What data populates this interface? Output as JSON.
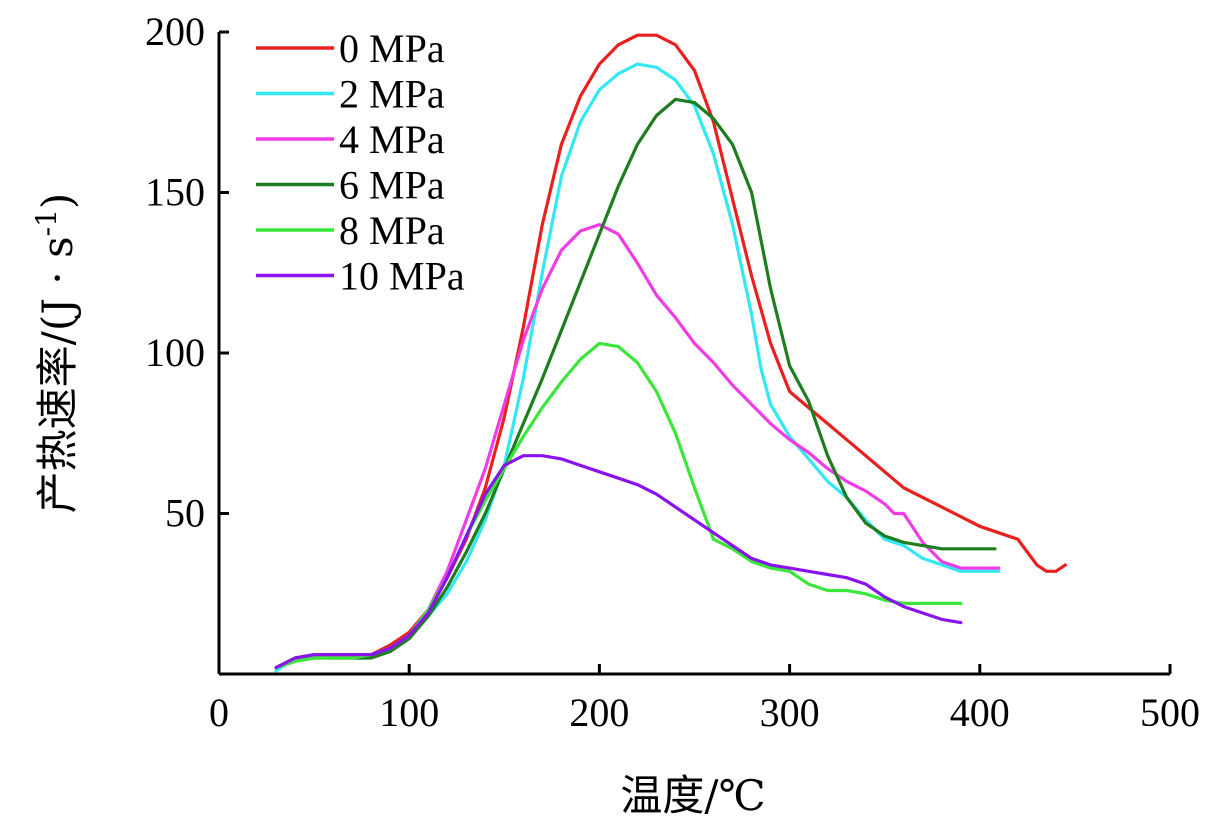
{
  "chart_data": {
    "type": "line",
    "title": "",
    "xlabel": "温度/℃",
    "ylabel_main": "产热速率/(J · s",
    "ylabel_sup": "-1",
    "ylabel_close": ")",
    "xlim": [
      0,
      500
    ],
    "ylim": [
      0,
      200
    ],
    "x_ticks": [
      0,
      100,
      200,
      300,
      400,
      500
    ],
    "x_tick_labels": [
      "0",
      "100",
      "200",
      "300",
      "400",
      "500"
    ],
    "y_ticks": [
      50,
      100,
      150,
      200
    ],
    "y_tick_labels": [
      "50",
      "100",
      "150",
      "200"
    ],
    "grid": false,
    "legend_position": "top-left",
    "series": [
      {
        "name": "0 MPa",
        "color": "#e8201e",
        "x": [
          30,
          40,
          50,
          60,
          70,
          80,
          90,
          100,
          110,
          120,
          130,
          140,
          150,
          160,
          170,
          180,
          190,
          200,
          210,
          220,
          230,
          240,
          250,
          260,
          270,
          280,
          290,
          300,
          310,
          320,
          330,
          340,
          350,
          360,
          370,
          380,
          390,
          400,
          410,
          420,
          425,
          430,
          435,
          440,
          445
        ],
        "y": [
          2,
          5,
          6,
          6,
          6,
          6,
          9,
          13,
          20,
          30,
          42,
          58,
          80,
          108,
          140,
          165,
          180,
          190,
          196,
          199,
          199,
          196,
          188,
          172,
          148,
          124,
          103,
          88,
          83,
          78,
          73,
          68,
          63,
          58,
          55,
          52,
          49,
          46,
          44,
          42,
          38,
          34,
          32,
          32,
          34
        ]
      },
      {
        "name": "2 MPa",
        "color": "#33e8f2",
        "x": [
          30,
          40,
          50,
          60,
          70,
          80,
          90,
          100,
          110,
          120,
          130,
          140,
          150,
          160,
          170,
          180,
          190,
          200,
          210,
          220,
          230,
          240,
          250,
          260,
          270,
          280,
          285,
          290,
          300,
          310,
          320,
          330,
          340,
          350,
          360,
          370,
          380,
          390,
          400,
          410
        ],
        "y": [
          1,
          5,
          6,
          5,
          5,
          5,
          8,
          12,
          18,
          25,
          35,
          48,
          65,
          92,
          125,
          155,
          172,
          182,
          187,
          190,
          189,
          185,
          177,
          162,
          140,
          112,
          95,
          84,
          74,
          67,
          60,
          55,
          48,
          42,
          40,
          36,
          34,
          32,
          32,
          32
        ]
      },
      {
        "name": "4 MPa",
        "color": "#f03ce6",
        "x": [
          30,
          40,
          50,
          60,
          70,
          80,
          90,
          100,
          110,
          120,
          130,
          140,
          150,
          160,
          170,
          180,
          190,
          200,
          210,
          220,
          230,
          240,
          250,
          260,
          270,
          280,
          290,
          300,
          310,
          320,
          330,
          340,
          350,
          355,
          360,
          370,
          380,
          390,
          400,
          410
        ],
        "y": [
          2,
          5,
          6,
          6,
          6,
          6,
          8,
          12,
          20,
          32,
          48,
          64,
          84,
          104,
          120,
          132,
          138,
          140,
          137,
          128,
          118,
          111,
          103,
          97,
          90,
          84,
          78,
          73,
          69,
          64,
          60,
          57,
          53,
          50,
          50,
          41,
          35,
          33,
          33,
          33
        ]
      },
      {
        "name": "6 MPa",
        "color": "#1e7d1e",
        "x": [
          30,
          40,
          50,
          60,
          70,
          80,
          90,
          100,
          110,
          120,
          130,
          140,
          150,
          160,
          170,
          180,
          190,
          200,
          210,
          220,
          230,
          240,
          250,
          260,
          270,
          280,
          290,
          300,
          310,
          320,
          330,
          340,
          350,
          360,
          370,
          380,
          390,
          400,
          408
        ],
        "y": [
          2,
          4,
          5,
          5,
          5,
          5,
          7,
          11,
          18,
          27,
          38,
          50,
          64,
          78,
          92,
          107,
          122,
          137,
          152,
          165,
          174,
          179,
          178,
          173,
          165,
          150,
          120,
          96,
          85,
          68,
          55,
          47,
          43,
          41,
          40,
          39,
          39,
          39,
          39
        ]
      },
      {
        "name": "8 MPa",
        "color": "#3ae63a",
        "x": [
          30,
          40,
          50,
          60,
          70,
          80,
          90,
          100,
          110,
          120,
          130,
          140,
          150,
          160,
          170,
          180,
          190,
          200,
          210,
          220,
          230,
          240,
          250,
          260,
          270,
          280,
          290,
          300,
          310,
          320,
          330,
          340,
          350,
          360,
          370,
          380,
          390
        ],
        "y": [
          2,
          4,
          5,
          5,
          5,
          6,
          8,
          12,
          20,
          30,
          43,
          54,
          64,
          74,
          83,
          91,
          98,
          103,
          102,
          97,
          88,
          75,
          58,
          42,
          39,
          35,
          33,
          32,
          28,
          26,
          26,
          25,
          23,
          22,
          22,
          22,
          22
        ]
      },
      {
        "name": "10 MPa",
        "color": "#8a12ee",
        "x": [
          30,
          40,
          50,
          60,
          70,
          80,
          90,
          100,
          110,
          120,
          130,
          140,
          150,
          160,
          170,
          180,
          190,
          200,
          210,
          220,
          230,
          240,
          250,
          260,
          270,
          280,
          290,
          300,
          310,
          320,
          330,
          340,
          350,
          360,
          370,
          380,
          390
        ],
        "y": [
          2,
          5,
          6,
          6,
          6,
          6,
          8,
          12,
          19,
          30,
          43,
          56,
          65,
          68,
          68,
          67,
          65,
          63,
          61,
          59,
          56,
          52,
          48,
          44,
          40,
          36,
          34,
          33,
          32,
          31,
          30,
          28,
          24,
          21,
          19,
          17,
          16
        ]
      }
    ]
  }
}
